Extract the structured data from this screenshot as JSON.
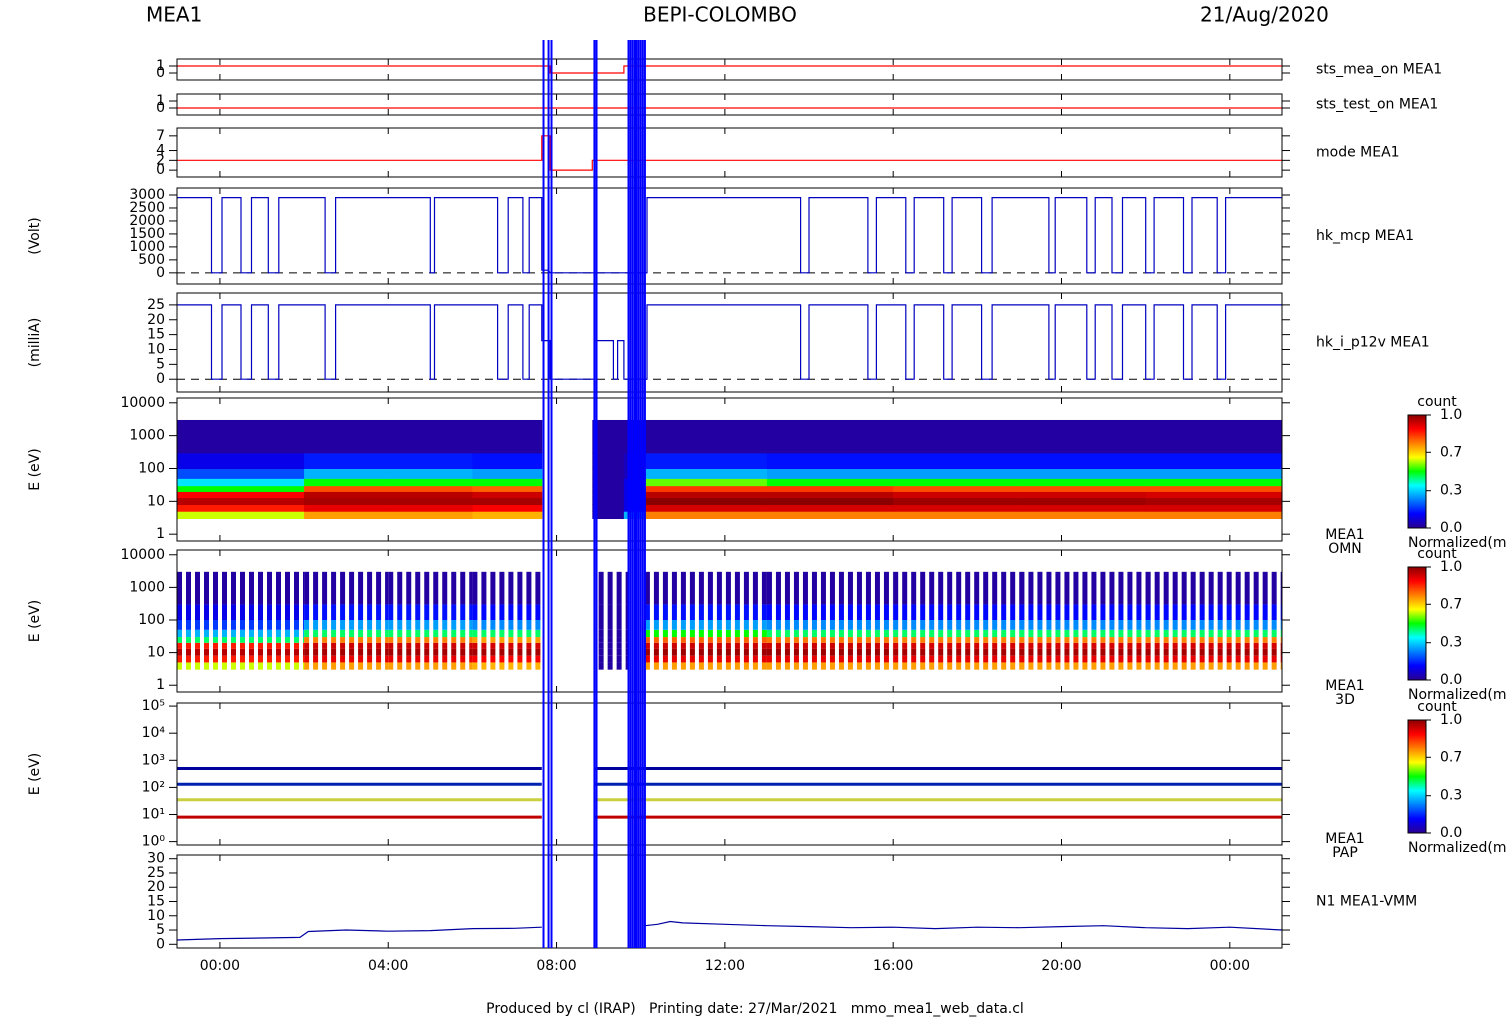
{
  "header": {
    "left": "MEA1",
    "center": "BEPI-COLOMBO",
    "right": "21/Aug/2020"
  },
  "footer": "Produced by cl (IRAP)   Printing date: 27/Mar/2021   mmo_mea1_web_data.cl",
  "time_axis": {
    "xlim": [
      -1.02,
      25.24
    ],
    "xticks": [
      {
        "value": 0,
        "label": "00:00"
      },
      {
        "value": 4,
        "label": "04:00"
      },
      {
        "value": 8,
        "label": "08:00"
      },
      {
        "value": 12,
        "label": "12:00"
      },
      {
        "value": 16,
        "label": "16:00"
      },
      {
        "value": 20,
        "label": "20:00"
      },
      {
        "value": 24,
        "label": "00:00"
      }
    ]
  },
  "events": [
    7.69,
    7.81,
    7.88,
    8.9,
    8.95,
    9.71,
    9.76,
    9.81,
    9.86,
    9.9,
    9.95,
    10.0,
    10.05,
    10.1
  ],
  "event_color": "#0000ff",
  "colormap": [
    "#2a0090",
    "#0000ff",
    "#0080ff",
    "#00ffff",
    "#00ff00",
    "#ffff00",
    "#ff8000",
    "#ff0000",
    "#8b0000"
  ],
  "chart_data": [
    {
      "type": "line",
      "label": "sts_mea_on MEA1",
      "color": "#ff0000",
      "ylim": [
        -1,
        2
      ],
      "yticks": [
        0,
        1
      ],
      "x": [
        -1.02,
        7.85,
        7.85,
        9.6,
        9.6,
        25.24
      ],
      "values": [
        1,
        1,
        0,
        0,
        1,
        1
      ]
    },
    {
      "type": "line",
      "label": "sts_test_on MEA1",
      "color": "#ff0000",
      "ylim": [
        -1,
        2
      ],
      "yticks": [
        0,
        1
      ],
      "x": [
        -1.02,
        25.24
      ],
      "values": [
        0,
        0
      ]
    },
    {
      "type": "line",
      "label": "mode MEA1",
      "color": "#ff0000",
      "ylim": [
        -1.4,
        8.6
      ],
      "yticks": [
        0,
        2,
        4,
        7
      ],
      "x": [
        -1.02,
        7.65,
        7.65,
        7.85,
        7.85,
        8.85,
        8.85,
        25.24
      ],
      "values": [
        2,
        2,
        7,
        7,
        0,
        0,
        2,
        2
      ]
    },
    {
      "type": "line",
      "label": "hk_mcp MEA1",
      "ylabel": "(Volt)",
      "color": "#0000c0",
      "zero_line": true,
      "ylim": [
        -430,
        3270
      ],
      "yticks": [
        0,
        500,
        1000,
        1500,
        2000,
        2500,
        3000
      ],
      "x": [
        -1.02,
        -0.2,
        -0.2,
        0.05,
        0.05,
        0.5,
        0.5,
        0.75,
        0.75,
        1.15,
        1.15,
        1.4,
        1.4,
        2.5,
        2.5,
        2.75,
        2.75,
        5.0,
        5.0,
        5.1,
        5.1,
        6.6,
        6.6,
        6.85,
        6.85,
        7.2,
        7.2,
        7.35,
        7.35,
        7.65,
        7.65,
        7.8,
        7.85,
        10.15,
        10.15,
        13.8,
        13.8,
        14.0,
        14.0,
        15.4,
        15.4,
        15.6,
        15.6,
        16.3,
        16.3,
        16.5,
        16.5,
        17.2,
        17.2,
        17.4,
        17.4,
        18.1,
        18.1,
        18.35,
        18.35,
        19.7,
        19.7,
        19.85,
        19.85,
        20.6,
        20.6,
        20.8,
        20.8,
        21.2,
        21.2,
        21.45,
        21.45,
        22.0,
        22.0,
        22.2,
        22.2,
        22.9,
        22.9,
        23.1,
        23.1,
        23.7,
        23.7,
        23.9,
        23.9,
        25.24
      ],
      "values": [
        2900,
        2900,
        0,
        0,
        2900,
        2900,
        0,
        0,
        2900,
        2900,
        0,
        0,
        2900,
        2900,
        0,
        0,
        2900,
        2900,
        0,
        0,
        2900,
        2900,
        0,
        0,
        2900,
        2900,
        0,
        0,
        2900,
        2900,
        100,
        100,
        0,
        0,
        2900,
        2900,
        0,
        0,
        2900,
        2900,
        0,
        0,
        2900,
        2900,
        0,
        0,
        2900,
        2900,
        0,
        0,
        2900,
        2900,
        0,
        0,
        2900,
        2900,
        0,
        0,
        2900,
        2900,
        0,
        0,
        2900,
        2900,
        0,
        0,
        2900,
        2900,
        0,
        0,
        2900,
        2900,
        0,
        0,
        2900,
        2900,
        0,
        0,
        2900,
        2900
      ]
    },
    {
      "type": "line",
      "label": "hk_i_p12v MEA1",
      "ylabel": "(milliA)",
      "color": "#0000c0",
      "zero_line": true,
      "ylim": [
        -4.3,
        29
      ],
      "yticks": [
        0,
        5,
        10,
        15,
        20,
        25
      ],
      "x": [
        -1.02,
        -0.2,
        -0.2,
        0.05,
        0.05,
        0.5,
        0.5,
        0.75,
        0.75,
        1.15,
        1.15,
        1.4,
        1.4,
        2.5,
        2.5,
        2.75,
        2.75,
        5.0,
        5.0,
        5.1,
        5.1,
        6.6,
        6.6,
        6.85,
        6.85,
        7.2,
        7.2,
        7.35,
        7.35,
        7.65,
        7.65,
        7.85,
        7.85,
        8.9,
        8.9,
        9.35,
        9.35,
        9.45,
        9.45,
        9.6,
        9.6,
        10.15,
        10.15,
        13.8,
        13.8,
        14.0,
        14.0,
        15.4,
        15.4,
        15.6,
        15.6,
        16.3,
        16.3,
        16.5,
        16.5,
        17.2,
        17.2,
        17.4,
        17.4,
        18.1,
        18.1,
        18.35,
        18.35,
        19.7,
        19.7,
        19.85,
        19.85,
        20.6,
        20.6,
        20.8,
        20.8,
        21.2,
        21.2,
        21.45,
        21.45,
        22.0,
        22.0,
        22.2,
        22.2,
        22.9,
        22.9,
        23.1,
        23.1,
        23.7,
        23.7,
        23.9,
        23.9,
        25.24
      ],
      "values": [
        25,
        25,
        0,
        0,
        25,
        25,
        0,
        0,
        25,
        25,
        0,
        0,
        25,
        25,
        0,
        0,
        25,
        25,
        0,
        0,
        25,
        25,
        0,
        0,
        25,
        25,
        0,
        0,
        25,
        25,
        13,
        13,
        0,
        0,
        13,
        13,
        0,
        0,
        13,
        13,
        0,
        0,
        25,
        25,
        0,
        0,
        25,
        25,
        0,
        0,
        25,
        25,
        0,
        0,
        25,
        25,
        0,
        0,
        25,
        25,
        0,
        0,
        25,
        25,
        0,
        0,
        25,
        25,
        0,
        0,
        25,
        25,
        0,
        0,
        25,
        25,
        0,
        0,
        25,
        25,
        0,
        0,
        25,
        25,
        0,
        0,
        25,
        25
      ]
    },
    {
      "type": "heatmap",
      "label": [
        "MEA1",
        "OMN"
      ],
      "ylabel": "E (eV)",
      "log": true,
      "ylim": [
        0.62,
        14000
      ],
      "yticks": [
        1,
        10,
        100,
        1000,
        10000
      ],
      "x_edges": [
        -1.02,
        2,
        4,
        6,
        7.65,
        8.85,
        9.6,
        10.1,
        13,
        16,
        19,
        22,
        25.24
      ],
      "y_edges": [
        3,
        5,
        8,
        13,
        20,
        30,
        50,
        100,
        300,
        3000
      ],
      "z": [
        [
          0.6,
          0.72,
          0.72,
          0.7,
          null,
          0.02,
          0.3,
          0.75,
          0.75,
          0.75,
          0.75,
          0.75
        ],
        [
          0.85,
          0.9,
          0.9,
          0.88,
          null,
          0.02,
          0.1,
          0.92,
          0.92,
          0.92,
          0.92,
          0.92
        ],
        [
          0.95,
          0.97,
          0.97,
          0.97,
          null,
          0.02,
          0.1,
          1,
          1,
          0.98,
          0.98,
          0.97
        ],
        [
          0.88,
          0.95,
          0.95,
          0.93,
          null,
          0.02,
          0.1,
          0.95,
          0.95,
          0.93,
          0.93,
          0.92
        ],
        [
          0.5,
          0.8,
          0.8,
          0.78,
          null,
          0.02,
          0.1,
          0.82,
          0.82,
          0.8,
          0.8,
          0.8
        ],
        [
          0.35,
          0.5,
          0.5,
          0.5,
          null,
          0.02,
          0.1,
          0.55,
          0.5,
          0.5,
          0.5,
          0.5
        ],
        [
          0.2,
          0.3,
          0.3,
          0.28,
          null,
          0.02,
          0.05,
          0.3,
          0.28,
          0.28,
          0.28,
          0.28
        ],
        [
          0.1,
          0.15,
          0.15,
          0.14,
          null,
          0.02,
          0.05,
          0.15,
          0.14,
          0.14,
          0.14,
          0.14
        ],
        [
          0.02,
          0.02,
          0.02,
          0.02,
          null,
          0.02,
          0.02,
          0.02,
          0.02,
          0.02,
          0.02,
          0.02
        ]
      ],
      "colorbar": {
        "title": "count",
        "label": "Normalized(m",
        "ticks": [
          {
            "value": 0,
            "label": "0.0"
          },
          {
            "value": 0.33,
            "label": "0.3"
          },
          {
            "value": 0.67,
            "label": "0.7"
          },
          {
            "value": 1,
            "label": "1.0"
          }
        ]
      }
    },
    {
      "type": "heatmap",
      "label": [
        "MEA1",
        "3D"
      ],
      "ylabel": "E (eV)",
      "log": true,
      "striped": true,
      "ylim": [
        0.62,
        14000
      ],
      "yticks": [
        1,
        10,
        100,
        1000,
        10000
      ],
      "x_edges": [
        -1.02,
        2,
        4,
        6,
        7.65,
        9.0,
        9.7,
        10.1,
        13,
        16,
        19,
        22,
        25.24
      ],
      "y_edges": [
        3,
        5,
        8,
        13,
        20,
        30,
        50,
        100,
        300,
        3000
      ],
      "z": [
        [
          0.6,
          0.72,
          0.72,
          0.7,
          null,
          0.02,
          null,
          0.72,
          0.72,
          0.72,
          0.72,
          0.72
        ],
        [
          0.85,
          0.9,
          0.9,
          0.88,
          null,
          0.02,
          null,
          0.9,
          0.9,
          0.9,
          0.9,
          0.9
        ],
        [
          0.95,
          0.97,
          0.97,
          0.97,
          null,
          0.02,
          null,
          0.98,
          0.98,
          0.97,
          0.97,
          0.97
        ],
        [
          0.85,
          0.93,
          0.93,
          0.92,
          null,
          0.02,
          null,
          0.93,
          0.93,
          0.92,
          0.92,
          0.92
        ],
        [
          0.45,
          0.75,
          0.75,
          0.72,
          null,
          0.02,
          null,
          0.78,
          0.76,
          0.75,
          0.75,
          0.75
        ],
        [
          0.3,
          0.45,
          0.45,
          0.45,
          null,
          0.02,
          null,
          0.5,
          0.45,
          0.45,
          0.45,
          0.45
        ],
        [
          0.18,
          0.28,
          0.28,
          0.26,
          null,
          0.02,
          null,
          0.28,
          0.26,
          0.26,
          0.26,
          0.26
        ],
        [
          0.1,
          0.14,
          0.14,
          0.13,
          null,
          0.02,
          null,
          0.14,
          0.13,
          0.13,
          0.13,
          0.13
        ],
        [
          0.02,
          0.02,
          0.02,
          0.02,
          null,
          0.02,
          null,
          0.02,
          0.02,
          0.02,
          0.02,
          0.02
        ]
      ],
      "colorbar": {
        "title": "count",
        "label": "Normalized(m",
        "ticks": [
          {
            "value": 0,
            "label": "0.0"
          },
          {
            "value": 0.33,
            "label": "0.3"
          },
          {
            "value": 0.67,
            "label": "0.7"
          },
          {
            "value": 1,
            "label": "1.0"
          }
        ]
      }
    },
    {
      "type": "line",
      "label": [
        "MEA1",
        "PAP"
      ],
      "ylabel": "E (eV)",
      "log": true,
      "line_width": 3,
      "ylim": [
        0.75,
        130000
      ],
      "yticks": [
        {
          "value": 1,
          "label": "10⁰"
        },
        {
          "value": 10,
          "label": "10¹"
        },
        {
          "value": 100,
          "label": "10²"
        },
        {
          "value": 1000,
          "label": "10³"
        },
        {
          "value": 10000,
          "label": "10⁴"
        },
        {
          "value": 100000,
          "label": "10⁵"
        }
      ],
      "series": [
        {
          "color": "#00009c",
          "x": [
            -1.02,
            7.65,
            8.3,
            8.9,
            25.24
          ],
          "values": [
            500,
            500,
            null,
            500,
            500
          ]
        },
        {
          "color": "#0020b0",
          "x": [
            -1.02,
            7.65,
            8.3,
            8.9,
            25.24
          ],
          "values": [
            130,
            130,
            null,
            130,
            130
          ]
        },
        {
          "color": "#c8d040",
          "x": [
            -1.02,
            7.65,
            8.3,
            8.9,
            25.24
          ],
          "values": [
            35,
            35,
            null,
            35,
            35
          ]
        },
        {
          "color": "#c00000",
          "x": [
            -1.02,
            7.65,
            8.3,
            8.9,
            25.24
          ],
          "values": [
            8,
            8,
            null,
            8,
            8
          ]
        }
      ],
      "colorbar": {
        "title": "count",
        "label": "Normalized(m",
        "ticks": [
          {
            "value": 0,
            "label": "0.0"
          },
          {
            "value": 0.33,
            "label": "0.3"
          },
          {
            "value": 0.67,
            "label": "0.7"
          },
          {
            "value": 1,
            "label": "1.0"
          }
        ]
      }
    },
    {
      "type": "line",
      "label": "N1 MEA1-VMM",
      "color": "#0000a0",
      "ylim": [
        -1.3,
        31.3
      ],
      "yticks": [
        0,
        5,
        10,
        15,
        20,
        25,
        30
      ],
      "x": [
        -1.02,
        0,
        1,
        1.9,
        2.1,
        3,
        4,
        5,
        6,
        7,
        7.65,
        7.7,
        10.1,
        10.4,
        10.7,
        11,
        12,
        13,
        14,
        15,
        16,
        17,
        18,
        19,
        20,
        21,
        22,
        23,
        24,
        25.24
      ],
      "values": [
        1.5,
        2,
        2.2,
        2.4,
        4.5,
        5,
        4.6,
        4.8,
        5.5,
        5.6,
        6,
        null,
        6.5,
        7,
        8,
        7.5,
        7,
        6.5,
        6.2,
        5.8,
        6,
        5.5,
        6,
        5.8,
        6.2,
        6.5,
        5.8,
        5.5,
        6,
        5
      ]
    }
  ]
}
